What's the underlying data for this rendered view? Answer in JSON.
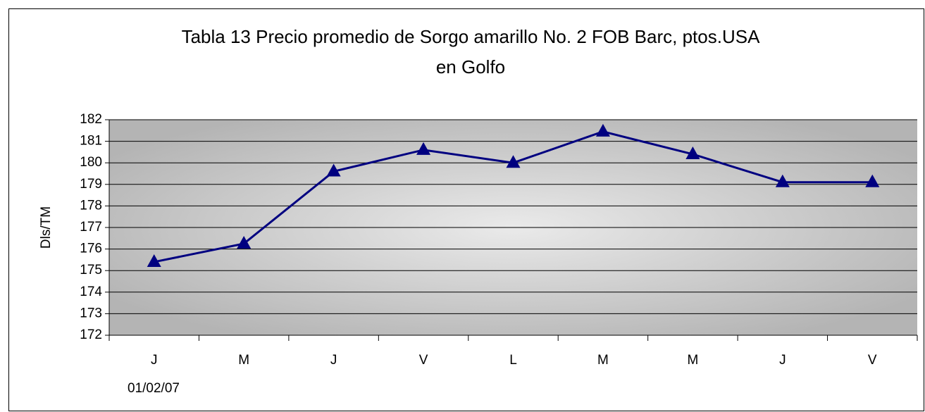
{
  "chart_data": {
    "type": "line",
    "title": [
      "Tabla 13 Precio promedio de Sorgo amarillo No. 2 FOB Barc, ptos.USA",
      "en Golfo"
    ],
    "y_label": "Dls/TM",
    "categories": [
      "J",
      "M",
      "J",
      "V",
      "L",
      "M",
      "M",
      "J",
      "V"
    ],
    "x_date_label": "01/02/07",
    "series": [
      {
        "color": "#000080",
        "marker": "triangle",
        "values": [
          175.4,
          176.25,
          179.6,
          180.6,
          180.0,
          181.45,
          180.4,
          179.1,
          179.1
        ]
      }
    ],
    "ylim": [
      172,
      182
    ],
    "yticks": [
      172,
      173,
      174,
      175,
      176,
      177,
      178,
      179,
      180,
      181,
      182
    ],
    "grid": true
  }
}
